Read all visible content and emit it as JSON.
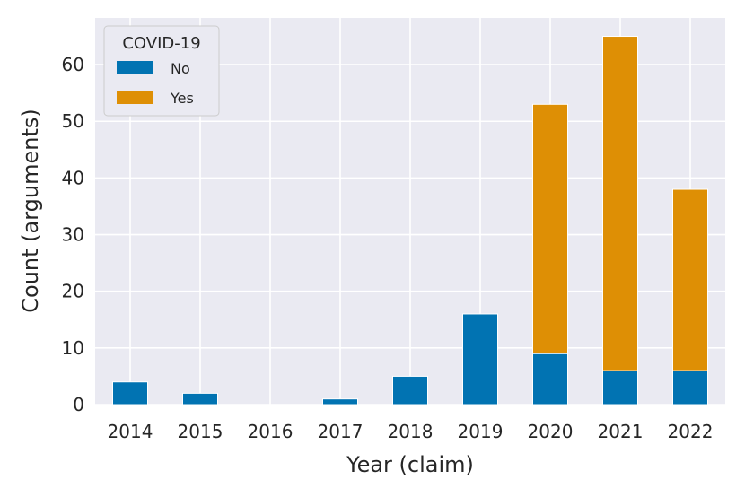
{
  "chart_data": {
    "type": "bar",
    "stacked": true,
    "categories": [
      "2014",
      "2015",
      "2016",
      "2017",
      "2018",
      "2019",
      "2020",
      "2021",
      "2022"
    ],
    "series": [
      {
        "name": "No",
        "color": "#0173b2",
        "values": [
          4,
          2,
          0,
          1,
          5,
          16,
          9,
          6,
          6
        ]
      },
      {
        "name": "Yes",
        "color": "#de8f05",
        "values": [
          0,
          0,
          0,
          0,
          0,
          0,
          44,
          59,
          32
        ]
      }
    ],
    "xlabel": "Year (claim)",
    "ylabel": "Count (arguments)",
    "ylim": [
      0,
      68.25
    ],
    "yticks": [
      0,
      10,
      20,
      30,
      40,
      50,
      60
    ],
    "grid": true,
    "background": "#eaeaf2",
    "legend": {
      "title": "COVID-19",
      "position": "top-left"
    }
  }
}
